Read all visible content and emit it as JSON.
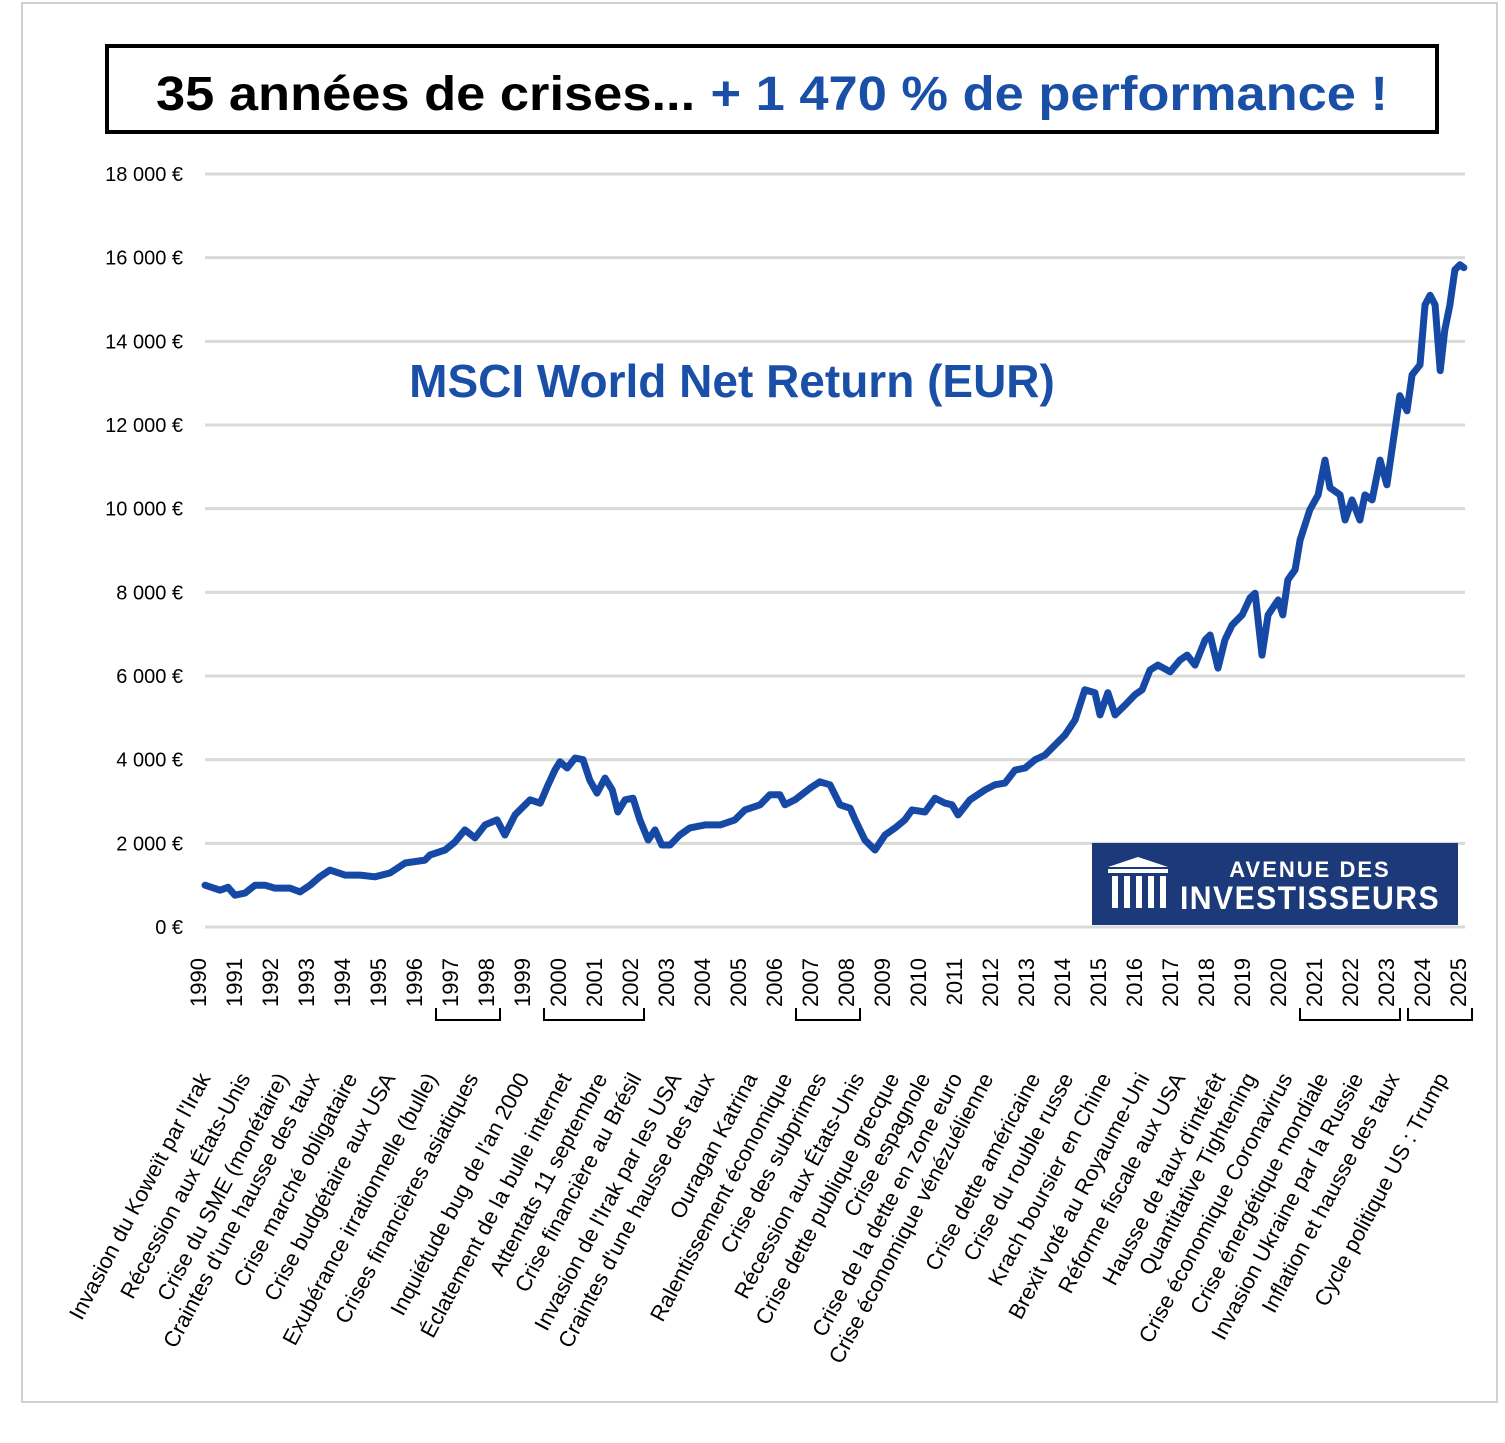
{
  "title": {
    "black_part": "35 années de crises...",
    "blue_part": "+ 1 470 % de performance !"
  },
  "logo": {
    "line1": "AVENUE DES",
    "line2": "INVESTISSEURS",
    "icon": "columns-building-icon",
    "background": "#1c3a7a"
  },
  "colors": {
    "line": "#1649a5",
    "accent": "#1a4fa8",
    "grid": "#d9d9d9"
  },
  "chart_data": {
    "type": "line",
    "title": "35 années de crises... + 1 470 % de performance !",
    "series_label": "MSCI World Net Return (EUR)",
    "ylim": [
      0,
      18000
    ],
    "xlim": [
      1990,
      2025
    ],
    "grid": true,
    "y_ticks": [
      "0 €",
      "2 000 €",
      "4 000 €",
      "6 000 €",
      "8 000 €",
      "10 000 €",
      "12 000 €",
      "14 000 €",
      "16 000 €",
      "18 000 €"
    ],
    "y_tick_values": [
      0,
      2000,
      4000,
      6000,
      8000,
      10000,
      12000,
      14000,
      16000,
      18000
    ],
    "x_ticks": [
      "1990",
      "1991",
      "1992",
      "1993",
      "1994",
      "1995",
      "1996",
      "1997",
      "1998",
      "1999",
      "2000",
      "2001",
      "2002",
      "2003",
      "2004",
      "2005",
      "2006",
      "2007",
      "2008",
      "2009",
      "2010",
      "2011",
      "2012",
      "2013",
      "2014",
      "2015",
      "2016",
      "2017",
      "2018",
      "2019",
      "2020",
      "2021",
      "2022",
      "2023",
      "2024",
      "2025"
    ],
    "year_brackets": [
      [
        "1997",
        "1998"
      ],
      [
        "2000",
        "2002"
      ],
      [
        "2007",
        "2008"
      ],
      [
        "2021",
        "2023"
      ],
      [
        "2024",
        "2025"
      ]
    ],
    "crises": [
      "Invasion du Koweït par l'Irak",
      "Récession aux États-Unis",
      "Crise du SME (monétaire)",
      "Craintes d'une hausse des taux",
      "Crise marché obligataire",
      "Crise budgétaire aux USA",
      "Exubérance irrationnelle (bulle)",
      "Crises financières asiatiques",
      "Inquiétude bug de l'an 2000",
      "Éclatement de la bulle internet",
      "Attentats 11 septembre",
      "Crise financière au Brésil",
      "Invasion de l'Irak par les USA",
      "Craintes d'une hausse des taux",
      "Ouragan Katrina",
      "Ralentissement économique",
      "Crise des subprimes",
      "Récession aux États-Unis",
      "Crise dette publique grecque",
      "Crise espagnole",
      "Crise de la dette en zone euro",
      "Crise économique vénézuélienne",
      "Crise dette américaine",
      "Crise du rouble russe",
      "Krach boursier en Chine",
      "Brexit voté au Royaume-Uni",
      "Réforme fiscale aux USA",
      "Hausse de taux d'intérêt",
      "Quantitative Tightening",
      "Crise économique Coronavirus",
      "Crise énergétique mondiale",
      "Invasion Ukraine par la Russie",
      "Inflation et hausse des taux",
      "Cycle politique US : Trump"
    ],
    "points": [
      [
        1990.0,
        1000
      ],
      [
        1990.42,
        880
      ],
      [
        1990.64,
        950
      ],
      [
        1990.83,
        760
      ],
      [
        1991.11,
        810
      ],
      [
        1991.39,
        1000
      ],
      [
        1991.67,
        1000
      ],
      [
        1991.94,
        930
      ],
      [
        1992.36,
        930
      ],
      [
        1992.64,
        840
      ],
      [
        1992.92,
        1000
      ],
      [
        1993.19,
        1200
      ],
      [
        1993.47,
        1360
      ],
      [
        1993.89,
        1240
      ],
      [
        1994.31,
        1240
      ],
      [
        1994.72,
        1200
      ],
      [
        1995.14,
        1290
      ],
      [
        1995.56,
        1530
      ],
      [
        1996.11,
        1600
      ],
      [
        1996.25,
        1720
      ],
      [
        1996.67,
        1840
      ],
      [
        1996.94,
        2030
      ],
      [
        1997.22,
        2320
      ],
      [
        1997.5,
        2130
      ],
      [
        1997.78,
        2440
      ],
      [
        1998.11,
        2560
      ],
      [
        1998.33,
        2200
      ],
      [
        1998.61,
        2680
      ],
      [
        1999.03,
        3040
      ],
      [
        1999.31,
        2960
      ],
      [
        1999.53,
        3400
      ],
      [
        1999.72,
        3750
      ],
      [
        1999.86,
        3950
      ],
      [
        2000.06,
        3800
      ],
      [
        2000.28,
        4040
      ],
      [
        2000.5,
        4000
      ],
      [
        2000.69,
        3510
      ],
      [
        2000.89,
        3200
      ],
      [
        2001.11,
        3560
      ],
      [
        2001.31,
        3280
      ],
      [
        2001.47,
        2750
      ],
      [
        2001.67,
        3040
      ],
      [
        2001.89,
        3080
      ],
      [
        2002.08,
        2560
      ],
      [
        2002.31,
        2080
      ],
      [
        2002.5,
        2320
      ],
      [
        2002.69,
        1960
      ],
      [
        2002.92,
        1960
      ],
      [
        2003.19,
        2200
      ],
      [
        2003.47,
        2370
      ],
      [
        2003.89,
        2440
      ],
      [
        2004.31,
        2440
      ],
      [
        2004.72,
        2560
      ],
      [
        2005.0,
        2800
      ],
      [
        2005.42,
        2920
      ],
      [
        2005.69,
        3160
      ],
      [
        2005.97,
        3160
      ],
      [
        2006.11,
        2920
      ],
      [
        2006.39,
        3040
      ],
      [
        2006.81,
        3320
      ],
      [
        2007.08,
        3470
      ],
      [
        2007.36,
        3400
      ],
      [
        2007.64,
        2920
      ],
      [
        2007.92,
        2840
      ],
      [
        2008.06,
        2560
      ],
      [
        2008.33,
        2080
      ],
      [
        2008.61,
        1840
      ],
      [
        2008.89,
        2200
      ],
      [
        2009.17,
        2370
      ],
      [
        2009.44,
        2560
      ],
      [
        2009.64,
        2800
      ],
      [
        2010.0,
        2750
      ],
      [
        2010.28,
        3080
      ],
      [
        2010.56,
        2960
      ],
      [
        2010.75,
        2920
      ],
      [
        2010.92,
        2680
      ],
      [
        2011.25,
        3040
      ],
      [
        2011.67,
        3280
      ],
      [
        2011.94,
        3400
      ],
      [
        2012.22,
        3440
      ],
      [
        2012.5,
        3750
      ],
      [
        2012.78,
        3800
      ],
      [
        2013.06,
        4000
      ],
      [
        2013.33,
        4110
      ],
      [
        2013.61,
        4350
      ],
      [
        2013.89,
        4590
      ],
      [
        2014.17,
        4950
      ],
      [
        2014.44,
        5670
      ],
      [
        2014.72,
        5600
      ],
      [
        2014.86,
        5070
      ],
      [
        2015.08,
        5600
      ],
      [
        2015.28,
        5070
      ],
      [
        2015.56,
        5310
      ],
      [
        2015.83,
        5550
      ],
      [
        2016.03,
        5670
      ],
      [
        2016.25,
        6140
      ],
      [
        2016.47,
        6260
      ],
      [
        2016.81,
        6100
      ],
      [
        2017.08,
        6380
      ],
      [
        2017.28,
        6500
      ],
      [
        2017.5,
        6260
      ],
      [
        2017.78,
        6860
      ],
      [
        2017.92,
        6980
      ],
      [
        2018.14,
        6190
      ],
      [
        2018.33,
        6860
      ],
      [
        2018.53,
        7220
      ],
      [
        2018.81,
        7460
      ],
      [
        2019.03,
        7870
      ],
      [
        2019.17,
        7980
      ],
      [
        2019.36,
        6500
      ],
      [
        2019.53,
        7460
      ],
      [
        2019.81,
        7820
      ],
      [
        2019.94,
        7460
      ],
      [
        2020.08,
        8300
      ],
      [
        2020.28,
        8540
      ],
      [
        2020.42,
        9250
      ],
      [
        2020.69,
        9970
      ],
      [
        2020.92,
        10330
      ],
      [
        2021.11,
        11160
      ],
      [
        2021.25,
        10500
      ],
      [
        2021.53,
        10330
      ],
      [
        2021.67,
        9730
      ],
      [
        2021.86,
        10210
      ],
      [
        2022.08,
        9730
      ],
      [
        2022.22,
        10330
      ],
      [
        2022.42,
        10210
      ],
      [
        2022.64,
        11160
      ],
      [
        2022.83,
        10570
      ],
      [
        2023.19,
        12700
      ],
      [
        2023.39,
        12340
      ],
      [
        2023.53,
        13200
      ],
      [
        2023.75,
        13440
      ],
      [
        2023.89,
        14870
      ],
      [
        2024.03,
        15100
      ],
      [
        2024.17,
        14870
      ],
      [
        2024.31,
        13300
      ],
      [
        2024.44,
        14270
      ],
      [
        2024.58,
        14870
      ],
      [
        2024.72,
        15710
      ],
      [
        2024.86,
        15830
      ],
      [
        2024.97,
        15760
      ]
    ]
  }
}
